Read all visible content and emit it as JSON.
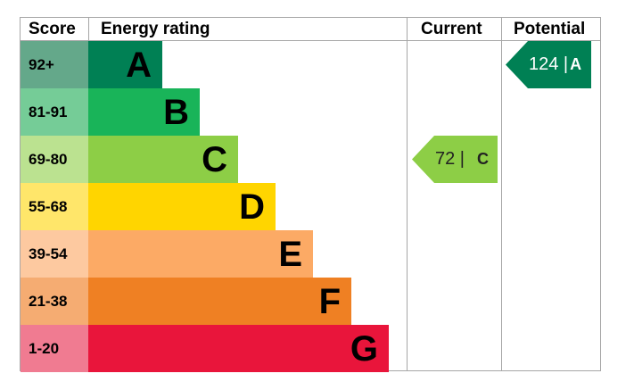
{
  "headers": {
    "score": "Score",
    "rating": "Energy rating",
    "current": "Current",
    "potential": "Potential"
  },
  "chart_data": {
    "type": "bar",
    "title": "",
    "bands": [
      {
        "letter": "A",
        "range": "92+",
        "min": 92,
        "max": null,
        "color": "#008054",
        "score_color": "#64a88a"
      },
      {
        "letter": "B",
        "range": "81-91",
        "min": 81,
        "max": 91,
        "color": "#19b459",
        "score_color": "#75cc97"
      },
      {
        "letter": "C",
        "range": "69-80",
        "min": 69,
        "max": 80,
        "color": "#8dce46",
        "score_color": "#bbe290"
      },
      {
        "letter": "D",
        "range": "55-68",
        "min": 55,
        "max": 68,
        "color": "#ffd500",
        "score_color": "#ffe66a"
      },
      {
        "letter": "E",
        "range": "39-54",
        "min": 39,
        "max": 54,
        "color": "#fcaa65",
        "score_color": "#fdc9a0"
      },
      {
        "letter": "F",
        "range": "21-38",
        "min": 21,
        "max": 38,
        "color": "#ef8023",
        "score_color": "#f5ac72"
      },
      {
        "letter": "G",
        "range": "1-20",
        "min": 1,
        "max": 20,
        "color": "#e9153b",
        "score_color": "#f07b91"
      }
    ],
    "current": {
      "value": 72,
      "text": "72 |",
      "letter": "C",
      "color": "#8dce46"
    },
    "potential": {
      "value": 124,
      "text": "124 |",
      "letter": "A",
      "color": "#008054"
    }
  }
}
